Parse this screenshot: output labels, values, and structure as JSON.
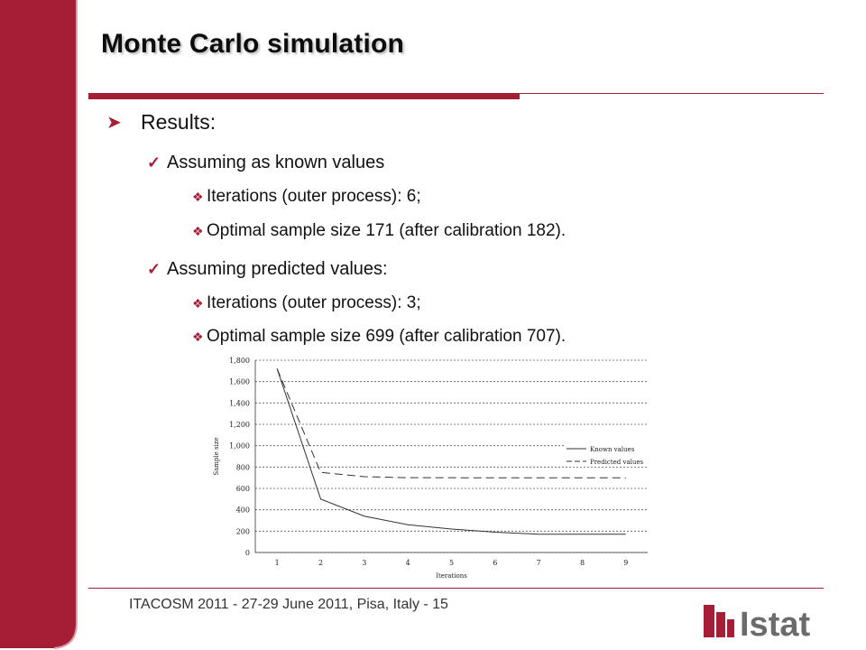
{
  "slide": {
    "title": "Monte Carlo simulation",
    "footer": "ITACOSM 2011 - 27-29 June 2011, Pisa, Italy  - 15",
    "logo_text": "Istat",
    "accent_color": "#a51e36"
  },
  "bullets": {
    "results": "Results:",
    "known": {
      "label": "Assuming as known values",
      "items": [
        "Iterations (outer process): 6;",
        "Optimal sample size 171 (after calibration 182)."
      ]
    },
    "predicted": {
      "label": "Assuming predicted values:",
      "items": [
        "Iterations (outer process): 3;",
        "Optimal sample size 699 (after calibration 707)."
      ]
    }
  },
  "icons": {
    "level1": "arrow-bullet-icon",
    "level2": "check-icon",
    "level3": "diamond-bullet-icon"
  },
  "chart_data": {
    "type": "line",
    "x": [
      1,
      2,
      3,
      4,
      5,
      6,
      7,
      8,
      9
    ],
    "x_tick_labels": [
      "1",
      "2",
      "3",
      "4",
      "5",
      "6",
      "7",
      "8",
      "9"
    ],
    "y_tick_labels": [
      "0",
      "200",
      "400",
      "600",
      "800",
      "1,000",
      "1,200",
      "1,400",
      "1,600",
      "1,800"
    ],
    "ylim": [
      0,
      1800
    ],
    "xlabel": "Iterations",
    "ylabel": "Sample size",
    "grid": "horizontal dashed",
    "legend_position": "right",
    "series": [
      {
        "name": "Known values",
        "style": "solid",
        "values": [
          1720,
          500,
          340,
          260,
          220,
          190,
          171,
          171,
          171
        ]
      },
      {
        "name": "Predicted values",
        "style": "dashed",
        "values": [
          1720,
          750,
          710,
          700,
          700,
          699,
          699,
          699,
          699
        ]
      }
    ]
  }
}
